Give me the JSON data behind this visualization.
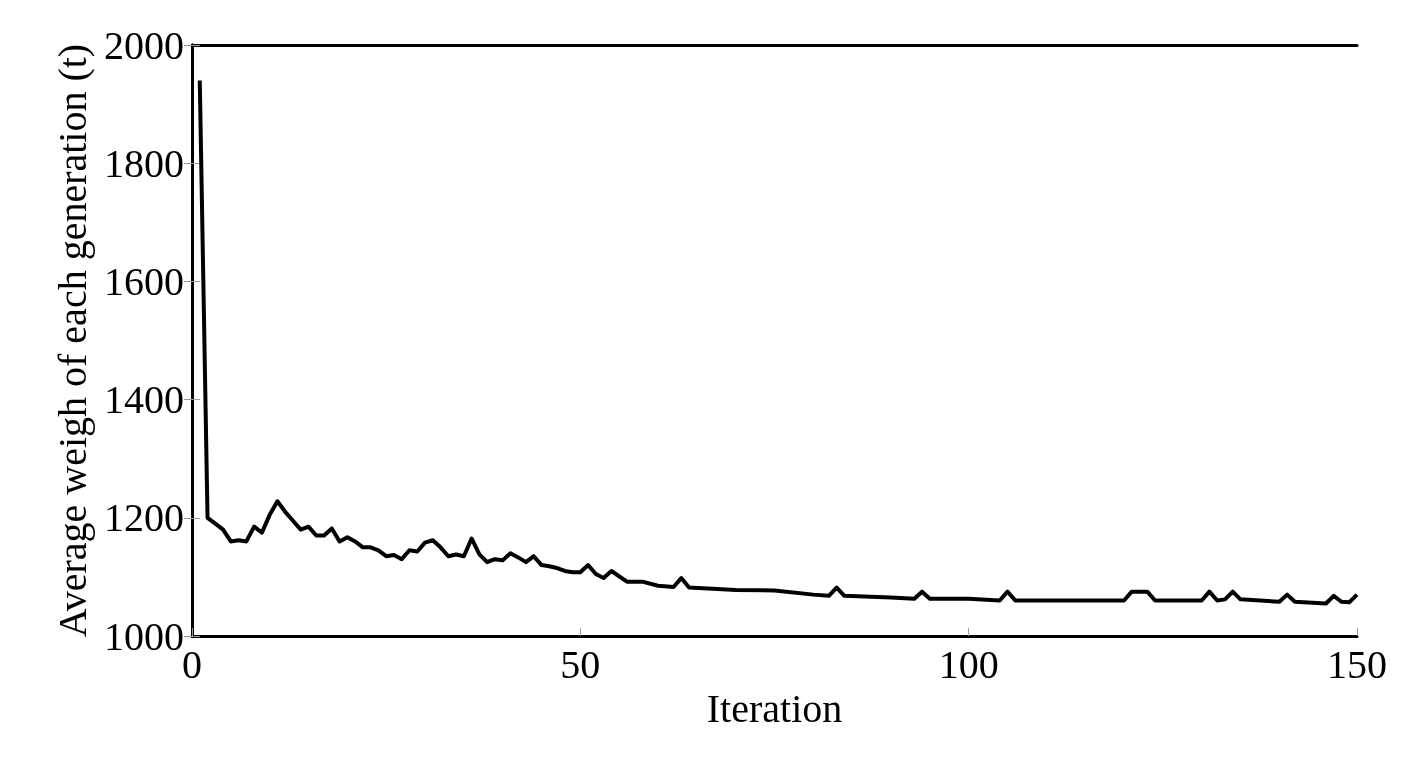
{
  "chart_data": {
    "type": "line",
    "xlabel": "Iteration",
    "ylabel": "Average weigh of each generation (t)",
    "xlim": [
      0,
      150
    ],
    "xticks": [
      0,
      50,
      100,
      150
    ],
    "ylim": [
      1000,
      2000
    ],
    "yticks": [
      1000,
      1200,
      1400,
      1600,
      1800,
      2000
    ],
    "grid": false,
    "marker": "none",
    "line_style": "solid",
    "series": [
      {
        "color": "#000000",
        "x": [
          1,
          2,
          3,
          4,
          5,
          6,
          7,
          8,
          9,
          10,
          11,
          12,
          13,
          14,
          15,
          16,
          17,
          18,
          19,
          20,
          21,
          22,
          23,
          24,
          25,
          26,
          27,
          28,
          29,
          30,
          31,
          32,
          33,
          34,
          35,
          36,
          37,
          38,
          39,
          40,
          41,
          42,
          43,
          44,
          45,
          46,
          47,
          48,
          49,
          50,
          51,
          52,
          53,
          54,
          56,
          58,
          60,
          62,
          63,
          64,
          70,
          75,
          80,
          82,
          83,
          84,
          90,
          93,
          94,
          95,
          100,
          104,
          105,
          106,
          115,
          120,
          121,
          123,
          124,
          130,
          131,
          132,
          133,
          134,
          135,
          140,
          141,
          142,
          146,
          147,
          148,
          149,
          150
        ],
        "values": [
          1940,
          1200,
          1190,
          1180,
          1160,
          1162,
          1160,
          1185,
          1175,
          1205,
          1228,
          1210,
          1195,
          1180,
          1185,
          1170,
          1170,
          1182,
          1160,
          1167,
          1160,
          1150,
          1150,
          1145,
          1135,
          1137,
          1130,
          1145,
          1143,
          1158,
          1162,
          1150,
          1135,
          1138,
          1135,
          1165,
          1138,
          1125,
          1130,
          1128,
          1140,
          1133,
          1125,
          1135,
          1120,
          1118,
          1115,
          1110,
          1108,
          1108,
          1120,
          1105,
          1098,
          1110,
          1092,
          1092,
          1085,
          1083,
          1098,
          1082,
          1078,
          1077,
          1070,
          1068,
          1082,
          1068,
          1065,
          1063,
          1075,
          1063,
          1063,
          1060,
          1075,
          1060,
          1060,
          1060,
          1075,
          1075,
          1060,
          1060,
          1075,
          1060,
          1062,
          1075,
          1062,
          1058,
          1070,
          1058,
          1055,
          1068,
          1058,
          1057,
          1070
        ]
      }
    ]
  }
}
